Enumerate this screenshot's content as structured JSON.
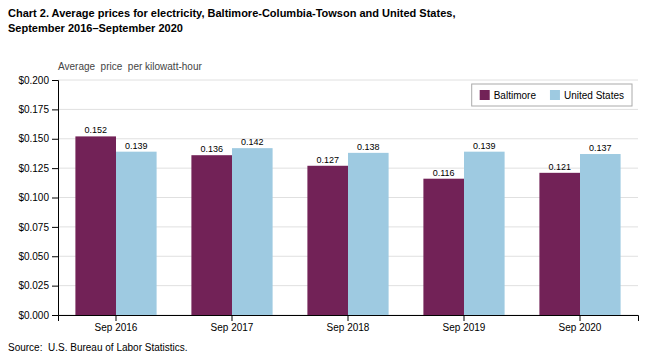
{
  "chart_data": {
    "type": "bar",
    "title": [
      "Chart 2. Average prices for electricity, Baltimore-Columbia-Towson and United States,",
      "September 2016–September 2020"
    ],
    "y_label": "Average  price  per kilowatt-hour",
    "annotations": [
      "Source:  U.S. Bureau of Labor Statistics."
    ],
    "categories": [
      "Sep 2016",
      "Sep 2017",
      "Sep 2018",
      "Sep 2019",
      "Sep 2020"
    ],
    "series": [
      {
        "name": "Baltimore",
        "color": "#722257",
        "values": [
          0.152,
          0.136,
          0.127,
          0.116,
          0.121
        ]
      },
      {
        "name": "United States",
        "color": "#9ECAE1",
        "values": [
          0.139,
          0.142,
          0.138,
          0.139,
          0.137
        ]
      }
    ],
    "ylim": [
      0,
      0.2
    ],
    "yticks": [
      {
        "value": 0.0,
        "label": "$0.000"
      },
      {
        "value": 0.025,
        "label": "$0.025"
      },
      {
        "value": 0.05,
        "label": "$0.050"
      },
      {
        "value": 0.075,
        "label": "$0.075"
      },
      {
        "value": 0.1,
        "label": "$0.100"
      },
      {
        "value": 0.125,
        "label": "$0.125"
      },
      {
        "value": 0.15,
        "label": "$0.150"
      },
      {
        "value": 0.175,
        "label": "$0.175"
      },
      {
        "value": 0.2,
        "label": "$0.200"
      }
    ],
    "grid": true,
    "legend": "upper right",
    "data_labels": true
  }
}
